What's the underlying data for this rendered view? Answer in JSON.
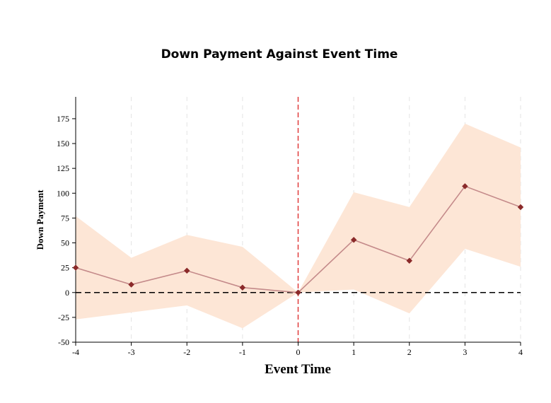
{
  "chart_data": {
    "type": "line",
    "title": "Down Payment Against Event Time",
    "xlabel": "Event Time",
    "ylabel": "Down Payment",
    "x": [
      -4,
      -3,
      -2,
      -1,
      0,
      1,
      2,
      3,
      4
    ],
    "xlim": [
      -4,
      4
    ],
    "ylim": [
      -50,
      197
    ],
    "yticks": [
      -50,
      -25,
      0,
      25,
      50,
      75,
      100,
      125,
      150,
      175
    ],
    "xticks": [
      -4,
      -3,
      -2,
      -1,
      0,
      1,
      2,
      3,
      4
    ],
    "grid": "vertical dashed",
    "series": [
      {
        "values": [
          25,
          8,
          22,
          5,
          0,
          53,
          32,
          107,
          86
        ],
        "ci_lower": [
          -27,
          -20,
          -13,
          -36,
          0,
          3,
          -21,
          44,
          26
        ],
        "ci_upper": [
          77,
          35,
          58,
          46,
          0,
          101,
          86,
          170,
          146
        ]
      }
    ],
    "reference_lines": {
      "y": 0,
      "x": 0
    },
    "colors": {
      "line": "#c48a8a",
      "marker": "#8b2a2a",
      "band": "#fde6d6",
      "vline": "#e03c3c",
      "hline": "#000000"
    }
  }
}
